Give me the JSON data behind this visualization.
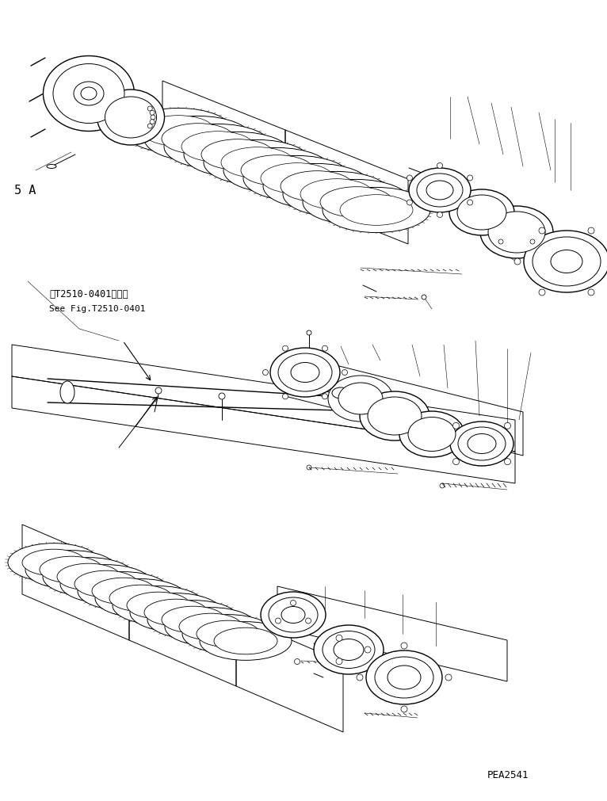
{
  "background_color": "#ffffff",
  "line_color": "#000000",
  "text_color": "#000000",
  "label_5a": "5 A",
  "label_ref_jp": "第T2510-0401図参照",
  "label_ref_en": "See Fig.T2510-0401",
  "label_code": "PEA2541",
  "fig_width": 7.66,
  "fig_height": 10.11,
  "dpi": 100
}
